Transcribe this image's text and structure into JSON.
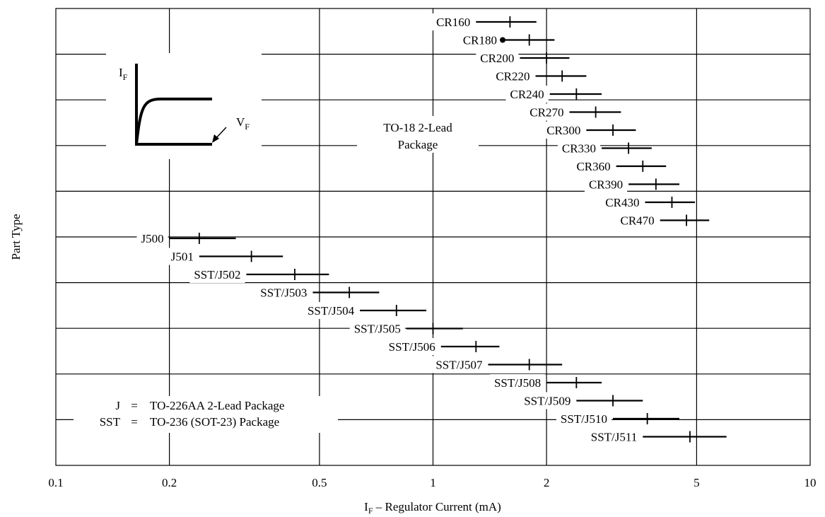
{
  "chart_data": {
    "type": "range",
    "xscale": "log",
    "xlim": [
      0.1,
      10
    ],
    "x_ticks": [
      "0.1",
      "0.2",
      "0.5",
      "1",
      "2",
      "5",
      "10"
    ],
    "x_tick_values": [
      0.1,
      0.2,
      0.5,
      1,
      2,
      5,
      10
    ],
    "xlabel": {
      "main": "I",
      "sub": "F",
      "rest": " – Regulator Current (mA)"
    },
    "ylabel": "Part Type",
    "grid": true,
    "rows": [
      {
        "label": "CR160",
        "min": 1.3,
        "nom": 1.6,
        "max": 1.88
      },
      {
        "label": "CR180",
        "min": 1.53,
        "nom": 1.8,
        "max": 2.1,
        "marker": "dot"
      },
      {
        "label": "CR200",
        "min": 1.7,
        "nom": 2.0,
        "max": 2.3
      },
      {
        "label": "CR220",
        "min": 1.87,
        "nom": 2.2,
        "max": 2.55
      },
      {
        "label": "CR240",
        "min": 2.04,
        "nom": 2.4,
        "max": 2.8
      },
      {
        "label": "CR270",
        "min": 2.3,
        "nom": 2.7,
        "max": 3.15
      },
      {
        "label": "CR300",
        "min": 2.55,
        "nom": 3.0,
        "max": 3.45
      },
      {
        "label": "CR330",
        "min": 2.8,
        "nom": 3.3,
        "max": 3.8
      },
      {
        "label": "CR360",
        "min": 3.06,
        "nom": 3.6,
        "max": 4.15
      },
      {
        "label": "CR390",
        "min": 3.3,
        "nom": 3.9,
        "max": 4.5
      },
      {
        "label": "CR430",
        "min": 3.65,
        "nom": 4.3,
        "max": 4.95
      },
      {
        "label": "CR470",
        "min": 4.0,
        "nom": 4.7,
        "max": 5.4
      },
      {
        "label": "J500",
        "min": 0.2,
        "nom": 0.24,
        "max": 0.3
      },
      {
        "label": "J501",
        "min": 0.24,
        "nom": 0.33,
        "max": 0.4
      },
      {
        "label": "SST/J502",
        "min": 0.32,
        "nom": 0.43,
        "max": 0.53
      },
      {
        "label": "SST/J503",
        "min": 0.48,
        "nom": 0.6,
        "max": 0.72
      },
      {
        "label": "SST/J504",
        "min": 0.64,
        "nom": 0.8,
        "max": 0.96
      },
      {
        "label": "SST/J505",
        "min": 0.85,
        "nom": 1.0,
        "max": 1.2
      },
      {
        "label": "SST/J506",
        "min": 1.05,
        "nom": 1.3,
        "max": 1.5
      },
      {
        "label": "SST/J507",
        "min": 1.4,
        "nom": 1.8,
        "max": 2.2
      },
      {
        "label": "SST/J508",
        "min": 2.0,
        "nom": 2.4,
        "max": 2.8
      },
      {
        "label": "SST/J509",
        "min": 2.4,
        "nom": 3.0,
        "max": 3.6
      },
      {
        "label": "SST/J510",
        "min": 3.0,
        "nom": 3.7,
        "max": 4.5
      },
      {
        "label": "SST/J511",
        "min": 3.6,
        "nom": 4.8,
        "max": 6.0
      }
    ],
    "annotations": {
      "package_cr": [
        "TO-18 2-Lead",
        "Package"
      ],
      "legend_lines": [
        {
          "key": "J",
          "eq": "=",
          "value": "TO-226AA 2-Lead Package"
        },
        {
          "key": "SST",
          "eq": "=",
          "value": "TO-236 (SOT-23) Package"
        }
      ],
      "inset": {
        "y_label_main": "I",
        "y_label_sub": "F",
        "x_label_main": "V",
        "x_label_sub": "F"
      }
    }
  }
}
